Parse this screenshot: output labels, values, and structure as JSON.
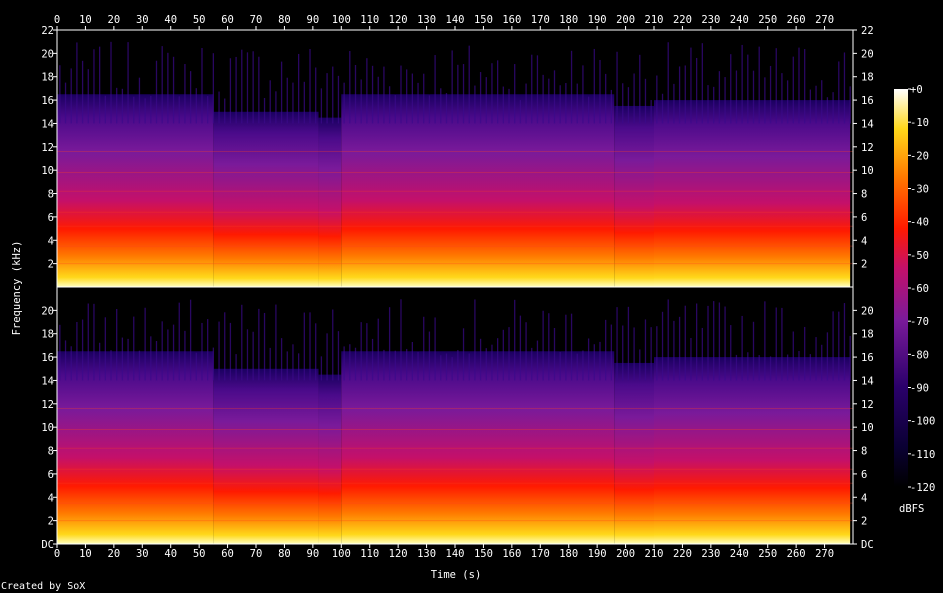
{
  "chart_data": {
    "type": "heatmap",
    "title": "",
    "footer": "Created by SoX",
    "xlabel": "Time (s)",
    "ylabel": "Frequency (kHz)",
    "xlim": [
      0,
      280
    ],
    "x_ticks": [
      0,
      10,
      20,
      30,
      40,
      50,
      60,
      70,
      80,
      90,
      100,
      110,
      120,
      130,
      140,
      150,
      160,
      170,
      180,
      190,
      200,
      210,
      220,
      230,
      240,
      250,
      260,
      270
    ],
    "x_tick_labels": [
      "0",
      "10",
      "20",
      "30",
      "40",
      "50",
      "60",
      "70",
      "80",
      "90",
      "100",
      "110",
      "120",
      "130",
      "140",
      "150",
      "160",
      "170",
      "180",
      "190",
      "200",
      "210",
      "220",
      "230",
      "240",
      "250",
      "260",
      "270"
    ],
    "ylim_khz": [
      0,
      22
    ],
    "channels": [
      {
        "y_ticks": [
          2,
          4,
          6,
          8,
          10,
          12,
          14,
          16,
          18,
          20,
          22
        ],
        "y_tick_labels": [
          "2",
          "4",
          "6",
          "8",
          "10",
          "12",
          "14",
          "16",
          "18",
          "20",
          "22"
        ]
      },
      {
        "y_ticks": [
          0,
          2,
          4,
          6,
          8,
          10,
          12,
          14,
          16,
          18,
          20
        ],
        "y_tick_labels": [
          "DC",
          "2",
          "4",
          "6",
          "8",
          "10",
          "12",
          "14",
          "16",
          "18",
          "20"
        ]
      }
    ],
    "segments": [
      {
        "start": 0,
        "end": 55,
        "cutoff_khz": 16.5
      },
      {
        "start": 55,
        "end": 92,
        "cutoff_khz": 15
      },
      {
        "start": 92,
        "end": 100,
        "cutoff_khz": 14.5
      },
      {
        "start": 100,
        "end": 196,
        "cutoff_khz": 16.5
      },
      {
        "start": 196,
        "end": 210,
        "cutoff_khz": 15.5
      },
      {
        "start": 210,
        "end": 279,
        "cutoff_khz": 16
      }
    ],
    "colorbar": {
      "label": "dBFS",
      "range": [
        -120,
        0
      ],
      "ticks": [
        0,
        -10,
        -20,
        -30,
        -40,
        -50,
        -60,
        -70,
        -80,
        -90,
        -100,
        -110,
        -120
      ],
      "tick_labels": [
        "+0",
        "-10",
        "-20",
        "-30",
        "-40",
        "-50",
        "-60",
        "-70",
        "-80",
        "-90",
        "-100",
        "-110",
        "-120"
      ]
    },
    "colors": {
      "background": "#000000",
      "text": "#ffffff",
      "axis": "#ffffff",
      "map_low": "#000000",
      "map_mid_low": "#2a006a",
      "map_mid": "#9a1fa0",
      "map_mid_high": "#ff1a00",
      "map_high": "#ffd81a",
      "map_top": "#ffffff"
    }
  }
}
